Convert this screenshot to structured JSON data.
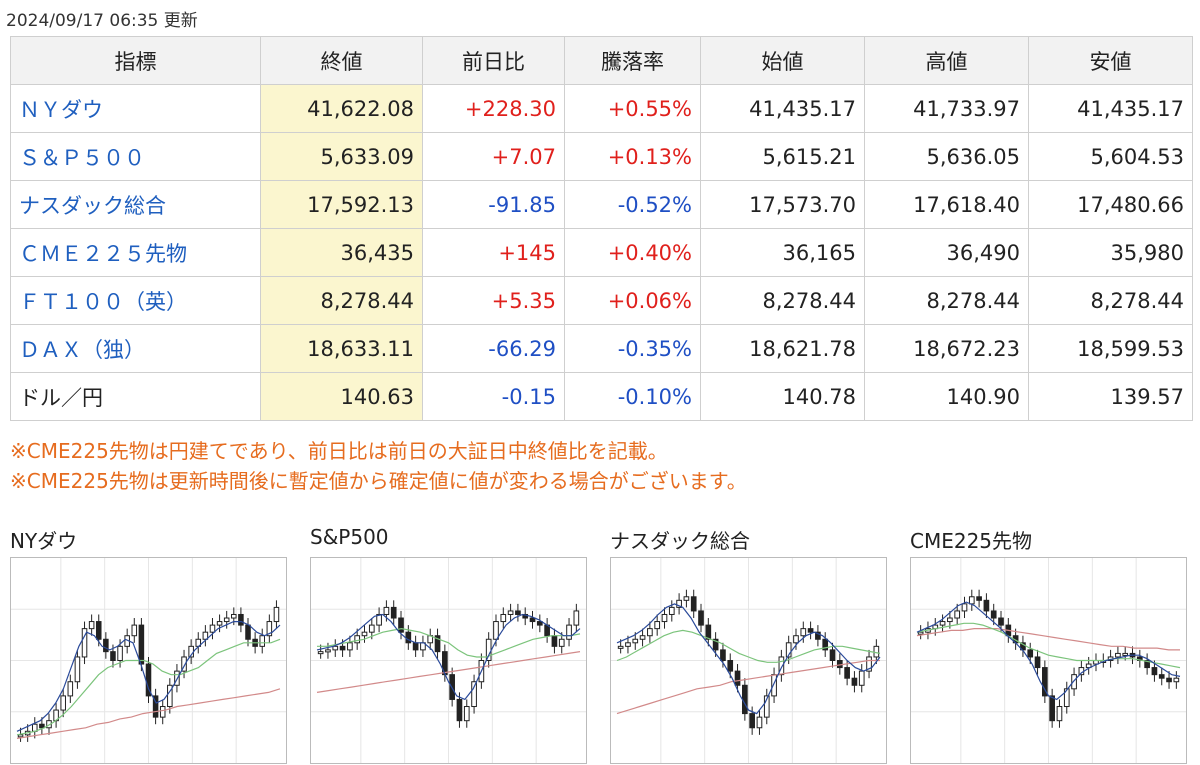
{
  "updated": "2024/09/17 06:35 更新",
  "table": {
    "headers": [
      "指標",
      "終値",
      "前日比",
      "騰落率",
      "始値",
      "高値",
      "安値"
    ],
    "rows": [
      {
        "name": "ＮＹダウ",
        "close": "41,622.08",
        "change": "+228.30",
        "pct": "+0.55%",
        "open": "41,435.17",
        "high": "41,733.97",
        "low": "41,435.17",
        "dir": "up",
        "link": true
      },
      {
        "name": "Ｓ＆Ｐ５００",
        "close": "5,633.09",
        "change": "+7.07",
        "pct": "+0.13%",
        "open": "5,615.21",
        "high": "5,636.05",
        "low": "5,604.53",
        "dir": "up",
        "link": true
      },
      {
        "name": "ナスダック総合",
        "close": "17,592.13",
        "change": "-91.85",
        "pct": "-0.52%",
        "open": "17,573.70",
        "high": "17,618.40",
        "low": "17,480.66",
        "dir": "down",
        "link": true
      },
      {
        "name": "ＣＭＥ２２５先物",
        "close": "36,435",
        "change": "+145",
        "pct": "+0.40%",
        "open": "36,165",
        "high": "36,490",
        "low": "35,980",
        "dir": "up",
        "link": true
      },
      {
        "name": "ＦＴ１００（英）",
        "close": "8,278.44",
        "change": "+5.35",
        "pct": "+0.06%",
        "open": "8,278.44",
        "high": "8,278.44",
        "low": "8,278.44",
        "dir": "up",
        "link": true
      },
      {
        "name": "ＤＡＸ（独）",
        "close": "18,633.11",
        "change": "-66.29",
        "pct": "-0.35%",
        "open": "18,621.78",
        "high": "18,672.23",
        "low": "18,599.53",
        "dir": "down",
        "link": true
      },
      {
        "name": "ドル／円",
        "close": "140.63",
        "change": "-0.15",
        "pct": "-0.10%",
        "open": "140.78",
        "high": "140.90",
        "low": "139.57",
        "dir": "down",
        "link": false
      }
    ]
  },
  "notes": [
    "※CME225先物は円建てであり、前日比は前日の大証日中終値比を記載。",
    "※CME225先物は更新時間後に暫定値から確定値に値が変わる場合がございます。"
  ],
  "charts": [
    {
      "title": "NYダウ",
      "series": [
        0.08,
        0.1,
        0.14,
        0.12,
        0.16,
        0.22,
        0.3,
        0.38,
        0.52,
        0.68,
        0.72,
        0.62,
        0.55,
        0.5,
        0.58,
        0.64,
        0.7,
        0.48,
        0.3,
        0.18,
        0.24,
        0.36,
        0.44,
        0.52,
        0.58,
        0.62,
        0.66,
        0.7,
        0.72,
        0.74,
        0.76,
        0.7,
        0.62,
        0.58,
        0.64,
        0.72,
        0.8
      ],
      "ma_short": [
        0.1,
        0.12,
        0.14,
        0.16,
        0.2,
        0.26,
        0.34,
        0.46,
        0.58,
        0.66,
        0.64,
        0.58,
        0.56,
        0.58,
        0.62,
        0.6,
        0.48,
        0.34,
        0.26,
        0.28,
        0.34,
        0.42,
        0.5,
        0.56,
        0.6,
        0.64,
        0.68,
        0.7,
        0.72,
        0.72,
        0.7,
        0.66,
        0.64,
        0.66,
        0.7
      ],
      "ma_mid": [
        0.08,
        0.09,
        0.1,
        0.12,
        0.15,
        0.19,
        0.24,
        0.3,
        0.36,
        0.42,
        0.46,
        0.48,
        0.5,
        0.5,
        0.5,
        0.48,
        0.44,
        0.42,
        0.42,
        0.44,
        0.46,
        0.5,
        0.54,
        0.56,
        0.58,
        0.6,
        0.6,
        0.6,
        0.6,
        0.62
      ],
      "ma_long": [
        0.06,
        0.07,
        0.08,
        0.09,
        0.1,
        0.11,
        0.12,
        0.14,
        0.15,
        0.17,
        0.18,
        0.2,
        0.21,
        0.22,
        0.24,
        0.25,
        0.26,
        0.27,
        0.28,
        0.29,
        0.3,
        0.31,
        0.32,
        0.34
      ]
    },
    {
      "title": "S&P500",
      "series": [
        0.55,
        0.56,
        0.58,
        0.56,
        0.6,
        0.64,
        0.66,
        0.7,
        0.76,
        0.8,
        0.74,
        0.66,
        0.6,
        0.56,
        0.6,
        0.64,
        0.55,
        0.42,
        0.28,
        0.16,
        0.24,
        0.38,
        0.5,
        0.62,
        0.72,
        0.76,
        0.78,
        0.76,
        0.74,
        0.72,
        0.7,
        0.64,
        0.58,
        0.62,
        0.7,
        0.78
      ],
      "ma_short": [
        0.56,
        0.57,
        0.58,
        0.6,
        0.63,
        0.67,
        0.71,
        0.75,
        0.76,
        0.72,
        0.66,
        0.62,
        0.6,
        0.6,
        0.56,
        0.48,
        0.38,
        0.3,
        0.28,
        0.34,
        0.44,
        0.54,
        0.63,
        0.7,
        0.74,
        0.76,
        0.75,
        0.73,
        0.7,
        0.67,
        0.64,
        0.64,
        0.68
      ],
      "ma_mid": [
        0.58,
        0.58,
        0.59,
        0.6,
        0.61,
        0.62,
        0.64,
        0.66,
        0.67,
        0.68,
        0.67,
        0.66,
        0.64,
        0.62,
        0.6,
        0.56,
        0.53,
        0.52,
        0.52,
        0.54,
        0.56,
        0.58,
        0.6,
        0.62,
        0.63,
        0.64,
        0.64,
        0.64,
        0.65
      ],
      "ma_long": [
        0.32,
        0.33,
        0.34,
        0.35,
        0.36,
        0.37,
        0.38,
        0.39,
        0.4,
        0.41,
        0.42,
        0.43,
        0.44,
        0.45,
        0.46,
        0.47,
        0.48,
        0.49,
        0.5,
        0.51,
        0.52,
        0.53,
        0.54,
        0.55
      ]
    },
    {
      "title": "ナスダック総合",
      "series": [
        0.58,
        0.6,
        0.62,
        0.64,
        0.68,
        0.72,
        0.76,
        0.8,
        0.84,
        0.86,
        0.78,
        0.7,
        0.62,
        0.56,
        0.5,
        0.44,
        0.36,
        0.2,
        0.12,
        0.18,
        0.3,
        0.42,
        0.52,
        0.6,
        0.64,
        0.68,
        0.66,
        0.62,
        0.56,
        0.5,
        0.46,
        0.4,
        0.36,
        0.44,
        0.52,
        0.58
      ],
      "ma_short": [
        0.6,
        0.62,
        0.64,
        0.67,
        0.71,
        0.76,
        0.8,
        0.82,
        0.8,
        0.74,
        0.66,
        0.6,
        0.54,
        0.48,
        0.4,
        0.3,
        0.22,
        0.2,
        0.26,
        0.36,
        0.46,
        0.54,
        0.6,
        0.64,
        0.66,
        0.64,
        0.6,
        0.55,
        0.5,
        0.46,
        0.44,
        0.46,
        0.52
      ],
      "ma_mid": [
        0.5,
        0.52,
        0.55,
        0.58,
        0.61,
        0.64,
        0.66,
        0.67,
        0.66,
        0.64,
        0.62,
        0.6,
        0.57,
        0.54,
        0.52,
        0.5,
        0.49,
        0.49,
        0.5,
        0.52,
        0.54,
        0.56,
        0.57,
        0.58,
        0.58,
        0.57,
        0.56,
        0.55,
        0.54
      ],
      "ma_long": [
        0.2,
        0.22,
        0.24,
        0.26,
        0.28,
        0.3,
        0.32,
        0.34,
        0.35,
        0.36,
        0.38,
        0.39,
        0.4,
        0.41,
        0.42,
        0.43,
        0.44,
        0.45,
        0.46,
        0.47,
        0.48,
        0.49,
        0.5,
        0.5
      ]
    },
    {
      "title": "CME225先物",
      "series": [
        0.66,
        0.68,
        0.7,
        0.72,
        0.74,
        0.78,
        0.82,
        0.86,
        0.84,
        0.78,
        0.74,
        0.7,
        0.64,
        0.6,
        0.56,
        0.52,
        0.46,
        0.3,
        0.16,
        0.24,
        0.34,
        0.42,
        0.46,
        0.48,
        0.5,
        0.5,
        0.52,
        0.54,
        0.54,
        0.52,
        0.5,
        0.46,
        0.42,
        0.4,
        0.38,
        0.4
      ],
      "ma_short": [
        0.66,
        0.68,
        0.7,
        0.73,
        0.77,
        0.81,
        0.83,
        0.81,
        0.77,
        0.73,
        0.69,
        0.64,
        0.6,
        0.55,
        0.48,
        0.38,
        0.3,
        0.28,
        0.32,
        0.38,
        0.43,
        0.46,
        0.48,
        0.5,
        0.51,
        0.52,
        0.53,
        0.53,
        0.51,
        0.48,
        0.45,
        0.42,
        0.41
      ],
      "ma_mid": [
        0.66,
        0.67,
        0.68,
        0.69,
        0.7,
        0.71,
        0.71,
        0.7,
        0.68,
        0.66,
        0.63,
        0.6,
        0.57,
        0.55,
        0.53,
        0.52,
        0.51,
        0.5,
        0.5,
        0.5,
        0.5,
        0.51,
        0.51,
        0.51,
        0.5,
        0.49,
        0.48,
        0.47,
        0.46
      ],
      "ma_long": [
        0.64,
        0.65,
        0.66,
        0.67,
        0.67,
        0.68,
        0.68,
        0.68,
        0.67,
        0.66,
        0.65,
        0.64,
        0.63,
        0.62,
        0.61,
        0.6,
        0.59,
        0.58,
        0.58,
        0.57,
        0.57,
        0.57,
        0.56,
        0.56
      ]
    }
  ],
  "colors": {
    "up": "#e0201c",
    "down": "#1f4fc4",
    "link": "#1f5fbf",
    "note": "#e66c1f",
    "closeBg": "#fbf6cf",
    "maShort": "#2a4a9a",
    "maMid": "#7cc47c",
    "maLong": "#d28a8a"
  }
}
